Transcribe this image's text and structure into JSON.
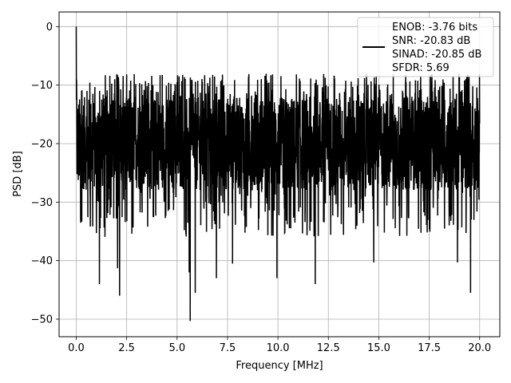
{
  "chart_data": {
    "type": "line",
    "xlabel": "Frequency [MHz]",
    "ylabel": "PSD [dB]",
    "xlim": [
      -0.85,
      21.0
    ],
    "ylim": [
      -53,
      2.5
    ],
    "xticks": [
      0.0,
      2.5,
      5.0,
      7.5,
      10.0,
      12.5,
      15.0,
      17.5,
      20.0
    ],
    "xtick_labels": [
      "0.0",
      "2.5",
      "5.0",
      "7.5",
      "10.0",
      "12.5",
      "15.0",
      "17.5",
      "20.0"
    ],
    "yticks": [
      0,
      -10,
      -20,
      -30,
      -40,
      -50
    ],
    "ytick_labels": [
      "0",
      "−10",
      "−20",
      "−30",
      "−40",
      "−50"
    ],
    "grid": true,
    "legend_position": "top-right",
    "series": [
      {
        "color": "#000000",
        "x_range": [
          0,
          20
        ],
        "peak_value": 0,
        "typical_range": [
          -28,
          -12
        ],
        "min_value": -50.3,
        "legend_lines": [
          "ENOB: -3.76 bits",
          "SNR: -20.83 dB",
          "SINAD: -20.85 dB",
          "SFDR: 5.69"
        ]
      }
    ],
    "notable_minima": [
      {
        "x": 1.15,
        "y": -44
      },
      {
        "x": 2.05,
        "y": -41.3
      },
      {
        "x": 2.15,
        "y": -46
      },
      {
        "x": 5.6,
        "y": -42
      },
      {
        "x": 5.65,
        "y": -50.3
      },
      {
        "x": 5.9,
        "y": -45.5
      },
      {
        "x": 6.95,
        "y": -43
      },
      {
        "x": 7.75,
        "y": -40.5
      },
      {
        "x": 9.95,
        "y": -43
      },
      {
        "x": 11.85,
        "y": -44
      },
      {
        "x": 14.75,
        "y": -40.3
      },
      {
        "x": 18.9,
        "y": -40.3
      },
      {
        "x": 19.55,
        "y": -45.5
      }
    ]
  }
}
